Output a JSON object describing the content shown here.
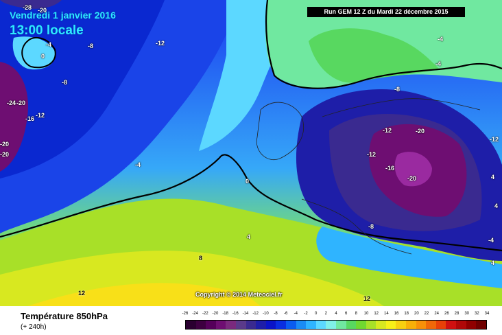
{
  "header": {
    "valid_date": "Vendredi 1 janvier 2016",
    "valid_time": "13:00 locale",
    "run_info": "Run GEM 12 Z du Mardi 22 décembre 2015"
  },
  "copyright": "Copyright © 2014 Meteociel.fr",
  "legend": {
    "title": "Température 850hPa",
    "lead_time": "(+ 240h)",
    "scale_ticks": [
      "-26",
      "-24",
      "-22",
      "-20",
      "-18",
      "-16",
      "-14",
      "-12",
      "-10",
      "-8",
      "-6",
      "-4",
      "-2",
      "0",
      "2",
      "4",
      "6",
      "8",
      "10",
      "12",
      "14",
      "16",
      "18",
      "20",
      "22",
      "24",
      "26",
      "28",
      "30",
      "32",
      "34"
    ],
    "scale_colors": [
      "#2a0030",
      "#3d0040",
      "#55005a",
      "#6e0e72",
      "#7a2a7e",
      "#5a3a8a",
      "#3a2a90",
      "#1e1ea8",
      "#0a14c8",
      "#0a2ee0",
      "#0a5cf0",
      "#1a8cf5",
      "#2fb4ff",
      "#5cd8ff",
      "#80f0e8",
      "#70e8a0",
      "#58d860",
      "#70d830",
      "#a8e028",
      "#d8e820",
      "#f8f018",
      "#f8d010",
      "#f8b008",
      "#f89008",
      "#f06808",
      "#e84008",
      "#d01010",
      "#b00808",
      "#900000",
      "#700000"
    ]
  },
  "contour_labels": [
    {
      "text": "-28",
      "value": -28
    },
    {
      "text": "-20",
      "value": -20
    },
    {
      "text": "-4",
      "value": -4
    },
    {
      "text": "0",
      "value": 0
    },
    {
      "text": "-8",
      "value": -8
    },
    {
      "text": "-12",
      "value": -12
    },
    {
      "text": "-24",
      "value": -24
    },
    {
      "text": "-20",
      "value": -20
    },
    {
      "text": "-16",
      "value": -16
    },
    {
      "text": "-12",
      "value": -12
    },
    {
      "text": "-8",
      "value": -8
    },
    {
      "text": "-4",
      "value": -4
    },
    {
      "text": "0",
      "value": 0
    },
    {
      "text": "-4",
      "value": -4
    },
    {
      "text": "-4",
      "value": -4
    },
    {
      "text": "-8",
      "value": -8
    },
    {
      "text": "-12",
      "value": -12
    },
    {
      "text": "-12",
      "value": -12
    },
    {
      "text": "-20",
      "value": -20
    },
    {
      "text": "-16",
      "value": -16
    },
    {
      "text": "-20",
      "value": -20
    },
    {
      "text": "-8",
      "value": -8
    },
    {
      "text": "4",
      "value": 4
    },
    {
      "text": "8",
      "value": 8
    },
    {
      "text": "12",
      "value": 12
    },
    {
      "text": "12",
      "value": 12
    },
    {
      "text": "-20",
      "value": -20
    },
    {
      "text": "-20",
      "value": -20
    },
    {
      "text": "4",
      "value": 4
    },
    {
      "text": "4",
      "value": 4
    },
    {
      "text": "-4",
      "value": -4
    },
    {
      "text": "4",
      "value": 4
    },
    {
      "text": "-12",
      "value": -12
    }
  ]
}
